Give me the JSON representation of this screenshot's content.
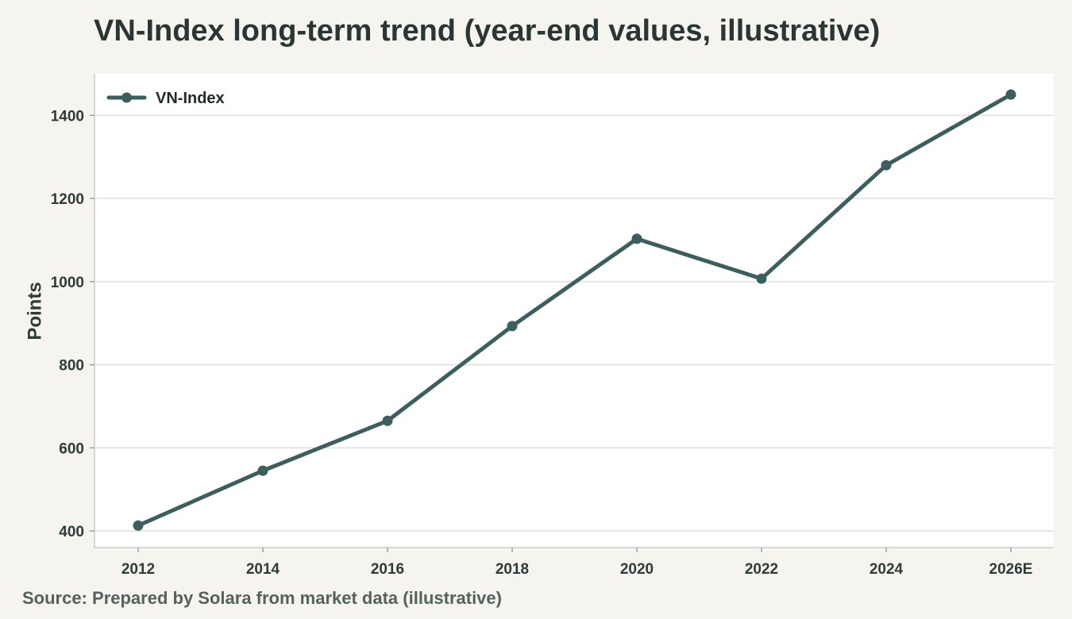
{
  "chart_data": {
    "type": "line",
    "title": "VN-Index long-term trend (year-end values, illustrative)",
    "source": "Source: Prepared by Solara from market data (illustrative)",
    "xlabel": "",
    "ylabel": "Points",
    "categories": [
      "2012",
      "2014",
      "2016",
      "2018",
      "2020",
      "2022",
      "2024",
      "2026E"
    ],
    "series": [
      {
        "name": "VN-Index",
        "values": [
          413,
          545,
          665,
          893,
          1103,
          1007,
          1280,
          1450
        ],
        "color": "#3d5e5e"
      }
    ],
    "yticks": [
      "400",
      "600",
      "800",
      "1000",
      "1200",
      "1400"
    ],
    "ylim": [
      360,
      1500
    ],
    "grid": "horizontal",
    "legend": "top-left"
  }
}
